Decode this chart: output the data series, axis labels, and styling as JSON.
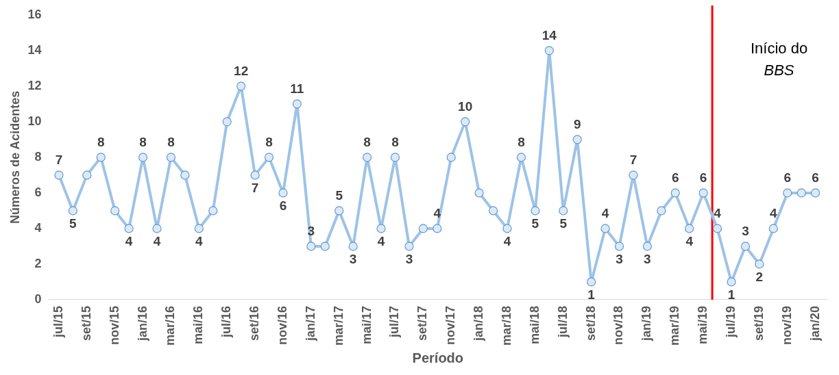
{
  "chart_data": {
    "type": "line",
    "xlabel": "Período",
    "ylabel": "Números de Acidentes",
    "x": [
      "2015-07",
      "2015-08",
      "2015-09",
      "2015-10",
      "2015-11",
      "2015-12",
      "2016-01",
      "2016-02",
      "2016-03",
      "2016-04",
      "2016-05",
      "2016-06",
      "2016-07",
      "2016-08",
      "2016-09",
      "2016-10",
      "2016-11",
      "2016-12",
      "2017-01",
      "2017-02",
      "2017-03",
      "2017-04",
      "2017-05",
      "2017-06",
      "2017-07",
      "2017-08",
      "2017-09",
      "2017-10",
      "2017-11",
      "2017-12",
      "2018-01",
      "2018-02",
      "2018-03",
      "2018-04",
      "2018-05",
      "2018-06",
      "2018-07",
      "2018-08",
      "2018-09",
      "2018-10",
      "2018-11",
      "2018-12",
      "2019-01",
      "2019-02",
      "2019-03",
      "2019-04",
      "2019-05",
      "2019-06",
      "2019-07",
      "2019-08",
      "2019-09",
      "2019-10",
      "2019-11",
      "2019-12",
      "2020-01"
    ],
    "series": [
      {
        "color": "#9dc3e6",
        "values": [
          7,
          5,
          7,
          8,
          5,
          4,
          8,
          4,
          8,
          7,
          4,
          5,
          10,
          12,
          7,
          8,
          6,
          11,
          3,
          3,
          5,
          3,
          8,
          4,
          8,
          3,
          4,
          4,
          8,
          10,
          6,
          5,
          4,
          8,
          5,
          14,
          5,
          9,
          1,
          4,
          3,
          7,
          3,
          5,
          6,
          4,
          6,
          4,
          1,
          3,
          2,
          4,
          6,
          6,
          6
        ],
        "value_labels": [
          "7",
          "5",
          null,
          "8",
          null,
          "4",
          "8",
          "4",
          "8",
          null,
          "4",
          null,
          null,
          "12",
          "7",
          "8",
          "6",
          "11",
          "3",
          null,
          "5",
          "3",
          "8",
          "4",
          "8",
          "3",
          null,
          "4",
          null,
          "10",
          null,
          null,
          "4",
          "8",
          "5",
          "14",
          "5",
          "9",
          "1",
          "4",
          "3",
          "7",
          "3",
          null,
          "6",
          "4",
          "6",
          "4",
          "1",
          "3",
          "2",
          "4",
          "6",
          null,
          "6"
        ]
      }
    ],
    "xlim": [
      "2015-06-10",
      "2020-01-25"
    ],
    "xticks": [
      {
        "value": "2015-07",
        "label": "jul/15"
      },
      {
        "value": "2015-09",
        "label": "set/15"
      },
      {
        "value": "2015-11",
        "label": "nov/15"
      },
      {
        "value": "2016-01",
        "label": "jan/16"
      },
      {
        "value": "2016-03",
        "label": "mar/16"
      },
      {
        "value": "2016-05",
        "label": "mai/16"
      },
      {
        "value": "2016-07",
        "label": "jul/16"
      },
      {
        "value": "2016-09",
        "label": "set/16"
      },
      {
        "value": "2016-11",
        "label": "nov/16"
      },
      {
        "value": "2017-01",
        "label": "jan/17"
      },
      {
        "value": "2017-03",
        "label": "mar/17"
      },
      {
        "value": "2017-05",
        "label": "mai/17"
      },
      {
        "value": "2017-07",
        "label": "jul/17"
      },
      {
        "value": "2017-09",
        "label": "set/17"
      },
      {
        "value": "2017-11",
        "label": "nov/17"
      },
      {
        "value": "2018-01",
        "label": "jan/18"
      },
      {
        "value": "2018-03",
        "label": "mar/18"
      },
      {
        "value": "2018-05",
        "label": "mai/18"
      },
      {
        "value": "2018-07",
        "label": "jul/18"
      },
      {
        "value": "2018-09",
        "label": "set/18"
      },
      {
        "value": "2018-11",
        "label": "nov/18"
      },
      {
        "value": "2019-01",
        "label": "jan/19"
      },
      {
        "value": "2019-03",
        "label": "mar/19"
      },
      {
        "value": "2019-05",
        "label": "mai/19"
      },
      {
        "value": "2019-07",
        "label": "jul/19"
      },
      {
        "value": "2019-09",
        "label": "set/19"
      },
      {
        "value": "2019-11",
        "label": "nov/19"
      },
      {
        "value": "2020-01",
        "label": "jan/20"
      }
    ],
    "ylim": [
      0,
      16
    ],
    "yticks": [
      0,
      2,
      4,
      6,
      8,
      10,
      12,
      14,
      16
    ],
    "grid": false,
    "legend": false,
    "marker": "circle",
    "line_style": "solid",
    "ref_lines": [
      {
        "axis": "x",
        "value": "2019-05-20",
        "label": "Início do BBS",
        "color": "#ff0000"
      }
    ]
  }
}
